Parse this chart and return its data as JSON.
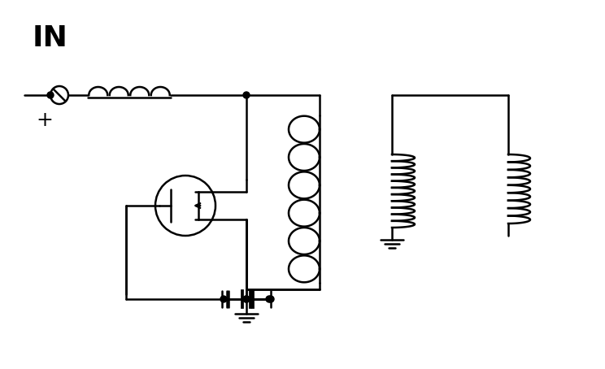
{
  "bg_color": "#ffffff",
  "line_color": "#000000",
  "lw": 1.8,
  "fig_w": 7.44,
  "fig_h": 4.54,
  "dpi": 100
}
